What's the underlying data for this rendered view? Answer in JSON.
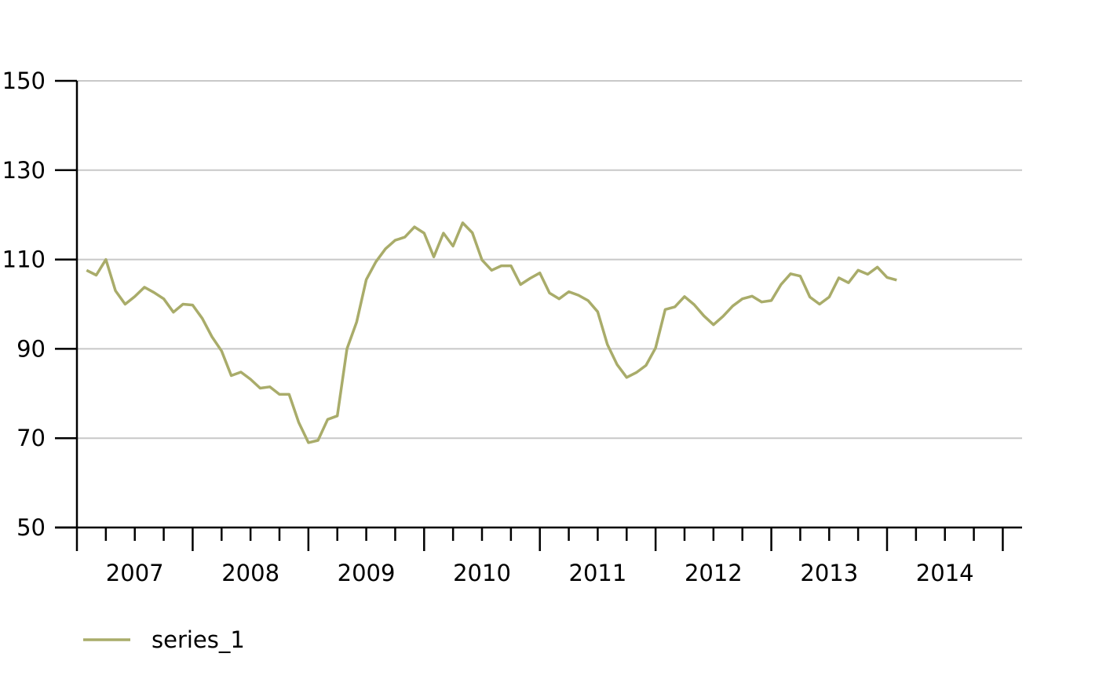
{
  "chart_data": {
    "type": "line",
    "title": "",
    "xlabel": "",
    "ylabel": "",
    "ylim": [
      50,
      150
    ],
    "yticks": [
      50,
      70,
      90,
      110,
      130,
      150
    ],
    "year_labels": [
      "2007",
      "2008",
      "2009",
      "2010",
      "2011",
      "2012",
      "2013",
      "2014"
    ],
    "x_start": "2006-10",
    "x_end": "2014-12",
    "grid": "horizontal",
    "legend_position": "bottom-left",
    "series": [
      {
        "name": "series_1",
        "color": "#a9ac6a",
        "points": [
          [
            "2006-11",
            107.6
          ],
          [
            "2006-12",
            106.5
          ],
          [
            "2007-01",
            110.0
          ],
          [
            "2007-02",
            103.0
          ],
          [
            "2007-03",
            100.0
          ],
          [
            "2007-04",
            101.7
          ],
          [
            "2007-05",
            103.8
          ],
          [
            "2007-06",
            102.6
          ],
          [
            "2007-07",
            101.2
          ],
          [
            "2007-08",
            98.2
          ],
          [
            "2007-09",
            100.0
          ],
          [
            "2007-10",
            99.8
          ],
          [
            "2007-11",
            96.8
          ],
          [
            "2007-12",
            92.7
          ],
          [
            "2008-01",
            89.5
          ],
          [
            "2008-02",
            84.0
          ],
          [
            "2008-03",
            84.8
          ],
          [
            "2008-04",
            83.2
          ],
          [
            "2008-05",
            81.2
          ],
          [
            "2008-06",
            81.5
          ],
          [
            "2008-07",
            79.8
          ],
          [
            "2008-08",
            79.8
          ],
          [
            "2008-09",
            73.5
          ],
          [
            "2008-10",
            69.0
          ],
          [
            "2008-11",
            69.5
          ],
          [
            "2008-12",
            74.2
          ],
          [
            "2009-01",
            75.0
          ],
          [
            "2009-02",
            90.0
          ],
          [
            "2009-03",
            96.0
          ],
          [
            "2009-04",
            105.5
          ],
          [
            "2009-05",
            109.5
          ],
          [
            "2009-06",
            112.4
          ],
          [
            "2009-07",
            114.3
          ],
          [
            "2009-08",
            115.0
          ],
          [
            "2009-09",
            117.3
          ],
          [
            "2009-10",
            115.9
          ],
          [
            "2009-11",
            110.6
          ],
          [
            "2009-12",
            115.9
          ],
          [
            "2010-01",
            113.0
          ],
          [
            "2010-02",
            118.2
          ],
          [
            "2010-03",
            116.0
          ],
          [
            "2010-04",
            109.9
          ],
          [
            "2010-05",
            107.6
          ],
          [
            "2010-06",
            108.6
          ],
          [
            "2010-07",
            108.6
          ],
          [
            "2010-08",
            104.4
          ],
          [
            "2010-09",
            105.8
          ],
          [
            "2010-10",
            107.0
          ],
          [
            "2010-11",
            102.5
          ],
          [
            "2010-12",
            101.2
          ],
          [
            "2011-01",
            102.8
          ],
          [
            "2011-02",
            102.0
          ],
          [
            "2011-03",
            100.8
          ],
          [
            "2011-04",
            98.3
          ],
          [
            "2011-05",
            91.0
          ],
          [
            "2011-06",
            86.5
          ],
          [
            "2011-07",
            83.6
          ],
          [
            "2011-08",
            84.7
          ],
          [
            "2011-09",
            86.3
          ],
          [
            "2011-10",
            90.2
          ],
          [
            "2011-11",
            98.8
          ],
          [
            "2011-12",
            99.4
          ],
          [
            "2012-01",
            101.7
          ],
          [
            "2012-02",
            99.9
          ],
          [
            "2012-03",
            97.4
          ],
          [
            "2012-04",
            95.4
          ],
          [
            "2012-05",
            97.3
          ],
          [
            "2012-06",
            99.6
          ],
          [
            "2012-07",
            101.2
          ],
          [
            "2012-08",
            101.8
          ],
          [
            "2012-09",
            100.5
          ],
          [
            "2012-10",
            100.8
          ],
          [
            "2012-11",
            104.4
          ],
          [
            "2012-12",
            106.8
          ],
          [
            "2013-01",
            106.3
          ],
          [
            "2013-02",
            101.6
          ],
          [
            "2013-03",
            100.0
          ],
          [
            "2013-04",
            101.6
          ],
          [
            "2013-05",
            105.9
          ],
          [
            "2013-06",
            104.8
          ],
          [
            "2013-07",
            107.6
          ],
          [
            "2013-08",
            106.7
          ],
          [
            "2013-09",
            108.3
          ],
          [
            "2013-10",
            106.0
          ],
          [
            "2013-11",
            105.4
          ]
        ]
      }
    ]
  }
}
